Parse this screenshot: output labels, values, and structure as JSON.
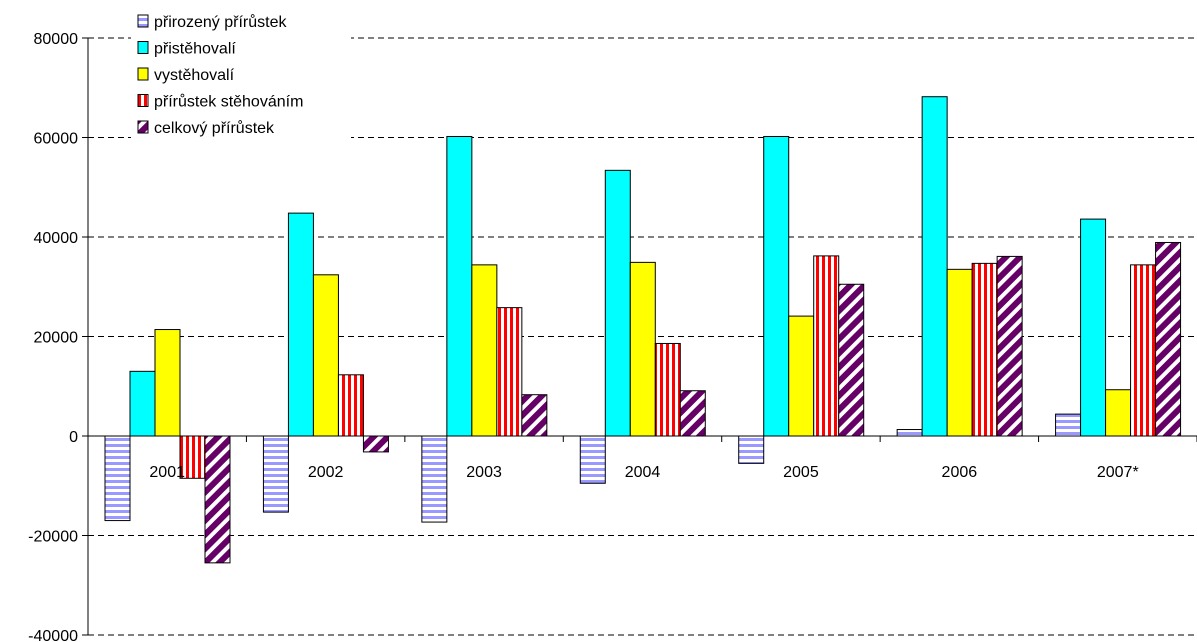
{
  "chart_data": {
    "type": "bar",
    "categories": [
      "2001",
      "2002",
      "2003",
      "2004",
      "2005",
      "2006",
      "2007*"
    ],
    "series": [
      {
        "name": "přirozený přírůstek",
        "values": [
          -17000,
          -15300,
          -17300,
          -9500,
          -5500,
          1300,
          4400
        ],
        "color": "#9999ff",
        "pattern": "horizontal-stripes"
      },
      {
        "name": "přistěhovalí",
        "values": [
          13000,
          44800,
          60200,
          53400,
          60200,
          68200,
          43600
        ],
        "color": "#00ffff",
        "pattern": "solid"
      },
      {
        "name": "vystěhovalí",
        "values": [
          21400,
          32400,
          34400,
          34900,
          24100,
          33500,
          9300
        ],
        "color": "#ffff00",
        "pattern": "solid"
      },
      {
        "name": "přírůstek stěhováním",
        "values": [
          -8500,
          12300,
          25800,
          18600,
          36200,
          34700,
          34400
        ],
        "color": "#ff0000",
        "pattern": "vertical-stripes"
      },
      {
        "name": "celkový přírůstek",
        "values": [
          -25500,
          -3200,
          8300,
          9100,
          30500,
          36100,
          38900
        ],
        "color": "#660066",
        "pattern": "diagonal-stripes"
      }
    ],
    "title": "",
    "xlabel": "",
    "ylabel": "",
    "ylim": [
      -40000,
      80000
    ],
    "yticks": [
      -40000,
      -20000,
      0,
      20000,
      40000,
      60000,
      80000
    ],
    "grid": true,
    "legend_position": "top-left"
  }
}
